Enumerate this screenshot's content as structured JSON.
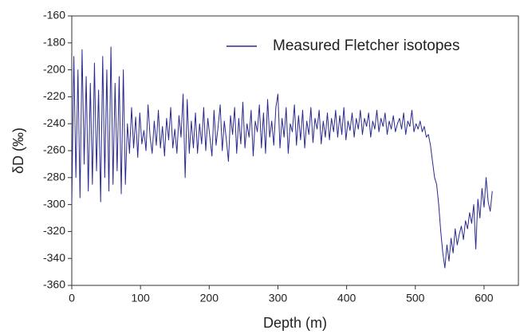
{
  "chart_data": {
    "type": "line",
    "xlabel": "Depth (m)",
    "ylabel": "δD  (‰)",
    "xlim": [
      0,
      650
    ],
    "ylim": [
      -360,
      -160
    ],
    "xticks": [
      0,
      100,
      200,
      300,
      400,
      500,
      600
    ],
    "yticks": [
      -160,
      -180,
      -200,
      -220,
      -240,
      -260,
      -280,
      -300,
      -320,
      -340,
      -360
    ],
    "legend": "upper right",
    "x": [
      0,
      3,
      6,
      9,
      12,
      15,
      18,
      21,
      24,
      27,
      30,
      33,
      36,
      39,
      42,
      45,
      48,
      51,
      54,
      57,
      60,
      63,
      66,
      69,
      72,
      75,
      78,
      81,
      84,
      87,
      90,
      93,
      96,
      99,
      102,
      105,
      108,
      111,
      114,
      117,
      120,
      123,
      126,
      129,
      132,
      135,
      138,
      141,
      144,
      147,
      150,
      153,
      156,
      159,
      162,
      165,
      168,
      171,
      174,
      177,
      180,
      183,
      186,
      189,
      192,
      195,
      198,
      201,
      204,
      207,
      210,
      213,
      216,
      219,
      222,
      225,
      228,
      231,
      234,
      237,
      240,
      243,
      246,
      249,
      252,
      255,
      258,
      261,
      264,
      267,
      270,
      273,
      276,
      279,
      282,
      285,
      288,
      291,
      294,
      297,
      300,
      303,
      306,
      309,
      312,
      315,
      318,
      321,
      324,
      327,
      330,
      333,
      336,
      339,
      342,
      345,
      348,
      351,
      354,
      357,
      360,
      363,
      366,
      369,
      372,
      375,
      378,
      381,
      384,
      387,
      390,
      393,
      396,
      399,
      402,
      405,
      408,
      411,
      414,
      417,
      420,
      423,
      426,
      429,
      432,
      435,
      438,
      441,
      444,
      447,
      450,
      453,
      456,
      459,
      462,
      465,
      468,
      471,
      474,
      477,
      480,
      483,
      486,
      489,
      492,
      495,
      498,
      501,
      504,
      507,
      510,
      513,
      516,
      519,
      522,
      525,
      528,
      531,
      534,
      537,
      540,
      543,
      546,
      549,
      552,
      555,
      558,
      561,
      564,
      567,
      570,
      573,
      576,
      579,
      582,
      585,
      588,
      591,
      594,
      597,
      600,
      603,
      606,
      609,
      612
    ],
    "series": [
      {
        "name": "Measured Fletcher isotopes",
        "color": "#2a2a8e",
        "values": [
          -300,
          -190,
          -280,
          -200,
          -295,
          -185,
          -270,
          -205,
          -290,
          -210,
          -285,
          -195,
          -275,
          -215,
          -298,
          -190,
          -280,
          -200,
          -290,
          -183,
          -285,
          -210,
          -275,
          -205,
          -292,
          -200,
          -285,
          -240,
          -262,
          -228,
          -258,
          -235,
          -265,
          -232,
          -255,
          -245,
          -260,
          -226,
          -250,
          -262,
          -238,
          -256,
          -230,
          -258,
          -242,
          -264,
          -236,
          -252,
          -228,
          -258,
          -244,
          -262,
          -234,
          -250,
          -218,
          -280,
          -222,
          -262,
          -238,
          -258,
          -232,
          -262,
          -240,
          -255,
          -228,
          -260,
          -236,
          -250,
          -264,
          -230,
          -256,
          -242,
          -226,
          -260,
          -238,
          -252,
          -268,
          -234,
          -248,
          -228,
          -262,
          -236,
          -255,
          -224,
          -258,
          -240,
          -250,
          -230,
          -264,
          -238,
          -246,
          -226,
          -258,
          -232,
          -262,
          -222,
          -250,
          -238,
          -256,
          -228,
          -218,
          -258,
          -236,
          -250,
          -228,
          -262,
          -240,
          -246,
          -226,
          -256,
          -234,
          -252,
          -230,
          -258,
          -238,
          -248,
          -228,
          -254,
          -236,
          -244,
          -230,
          -255,
          -238,
          -250,
          -232,
          -252,
          -236,
          -246,
          -230,
          -250,
          -234,
          -248,
          -228,
          -252,
          -238,
          -245,
          -232,
          -250,
          -236,
          -244,
          -230,
          -248,
          -236,
          -242,
          -232,
          -250,
          -238,
          -244,
          -230,
          -246,
          -236,
          -242,
          -232,
          -248,
          -238,
          -244,
          -234,
          -246,
          -240,
          -236,
          -244,
          -232,
          -248,
          -238,
          -242,
          -230,
          -246,
          -240,
          -244,
          -238,
          -246,
          -242,
          -250,
          -248,
          -256,
          -268,
          -280,
          -285,
          -300,
          -320,
          -336,
          -347,
          -330,
          -342,
          -325,
          -336,
          -318,
          -330,
          -322,
          -316,
          -326,
          -312,
          -318,
          -306,
          -314,
          -300,
          -333,
          -296,
          -310,
          -288,
          -302,
          -280,
          -298,
          -305,
          -290
        ]
      }
    ]
  }
}
